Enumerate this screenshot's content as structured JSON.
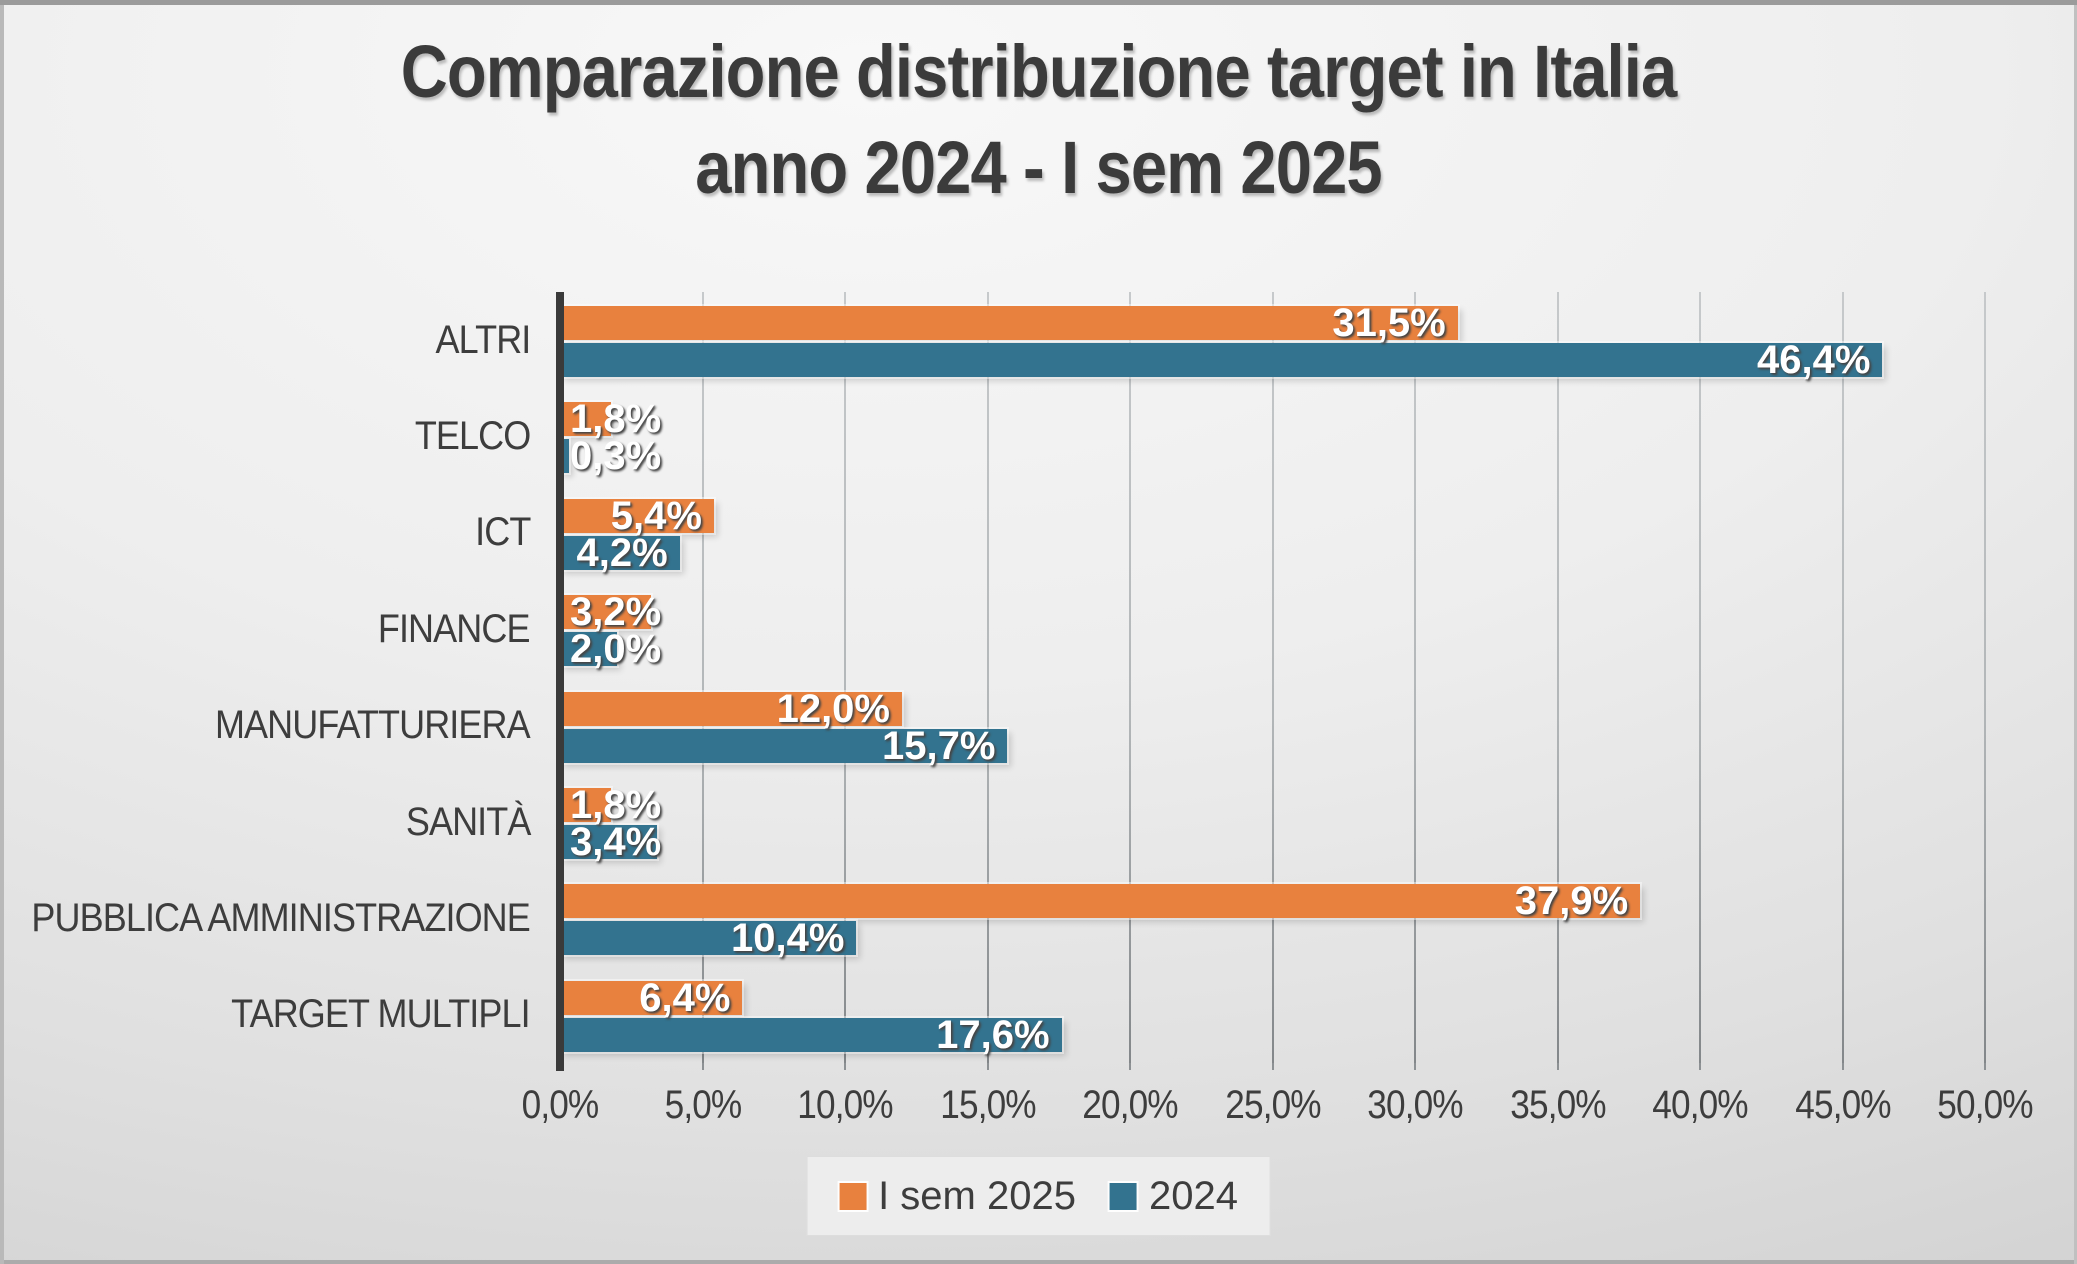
{
  "chart_data": {
    "type": "bar",
    "orientation": "horizontal",
    "title_line1": "Comparazione distribuzione target in Italia",
    "title_line2": "anno 2024 - I sem 2025",
    "categories": [
      "ALTRI",
      "TELCO",
      "ICT",
      "FINANCE",
      "MANUFATTURIERA",
      "SANITÀ",
      "PUBBLICA AMMINISTRAZIONE",
      "TARGET MULTIPLI"
    ],
    "series": [
      {
        "name": "I sem 2025",
        "color": "#E8813E",
        "values": [
          31.5,
          1.8,
          5.4,
          3.2,
          12.0,
          1.8,
          37.9,
          6.4
        ],
        "labels": [
          "31,5%",
          "1,8%",
          "5,4%",
          "3,2%",
          "12,0%",
          "1,8%",
          "37,9%",
          "6,4%"
        ]
      },
      {
        "name": "2024",
        "color": "#33738F",
        "values": [
          46.4,
          0.3,
          4.2,
          2.0,
          15.7,
          3.4,
          10.4,
          17.6
        ],
        "labels": [
          "46,4%",
          "0,3%",
          "4,2%",
          "2,0%",
          "15,7%",
          "3,4%",
          "10,4%",
          "17,6%"
        ]
      }
    ],
    "x_axis": {
      "min": 0,
      "max": 50,
      "tick_step": 5,
      "ticks": [
        "0,0%",
        "5,0%",
        "10,0%",
        "15,0%",
        "20,0%",
        "25,0%",
        "30,0%",
        "35,0%",
        "40,0%",
        "45,0%",
        "50,0%"
      ]
    },
    "legend_position": "bottom",
    "grid": true,
    "colors": {
      "title_text": "#3b3b3b",
      "axis_text": "#3d3d3d",
      "axis_line": "#3a3a3a",
      "gridline": "#a6aaac",
      "data_label_text": "#ffffff",
      "background_light": "#f8f8f8",
      "background_dark": "#cacaca",
      "legend_background": "#ededed"
    }
  }
}
